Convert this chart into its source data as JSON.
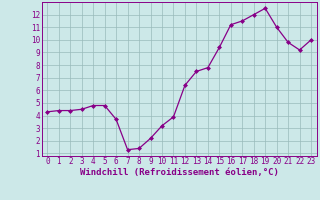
{
  "x": [
    0,
    1,
    2,
    3,
    4,
    5,
    6,
    7,
    8,
    9,
    10,
    11,
    12,
    13,
    14,
    15,
    16,
    17,
    18,
    19,
    20,
    21,
    22,
    23
  ],
  "y": [
    4.3,
    4.4,
    4.4,
    4.5,
    4.8,
    4.8,
    3.7,
    1.3,
    1.4,
    2.2,
    3.2,
    3.9,
    6.4,
    7.5,
    7.8,
    9.4,
    11.2,
    11.5,
    12.0,
    12.5,
    11.0,
    9.8,
    9.2,
    10.0
  ],
  "xlim": [
    -0.5,
    23.5
  ],
  "ylim": [
    0.8,
    13.0
  ],
  "yticks": [
    1,
    2,
    3,
    4,
    5,
    6,
    7,
    8,
    9,
    10,
    11,
    12
  ],
  "xticks": [
    0,
    1,
    2,
    3,
    4,
    5,
    6,
    7,
    8,
    9,
    10,
    11,
    12,
    13,
    14,
    15,
    16,
    17,
    18,
    19,
    20,
    21,
    22,
    23
  ],
  "xlabel": "Windchill (Refroidissement éolien,°C)",
  "line_color": "#880088",
  "marker": "D",
  "marker_size": 2.0,
  "line_width": 0.9,
  "bg_color": "#cce8e8",
  "grid_color": "#99bbbb",
  "tick_label_fontsize": 5.5,
  "xlabel_fontsize": 6.5
}
